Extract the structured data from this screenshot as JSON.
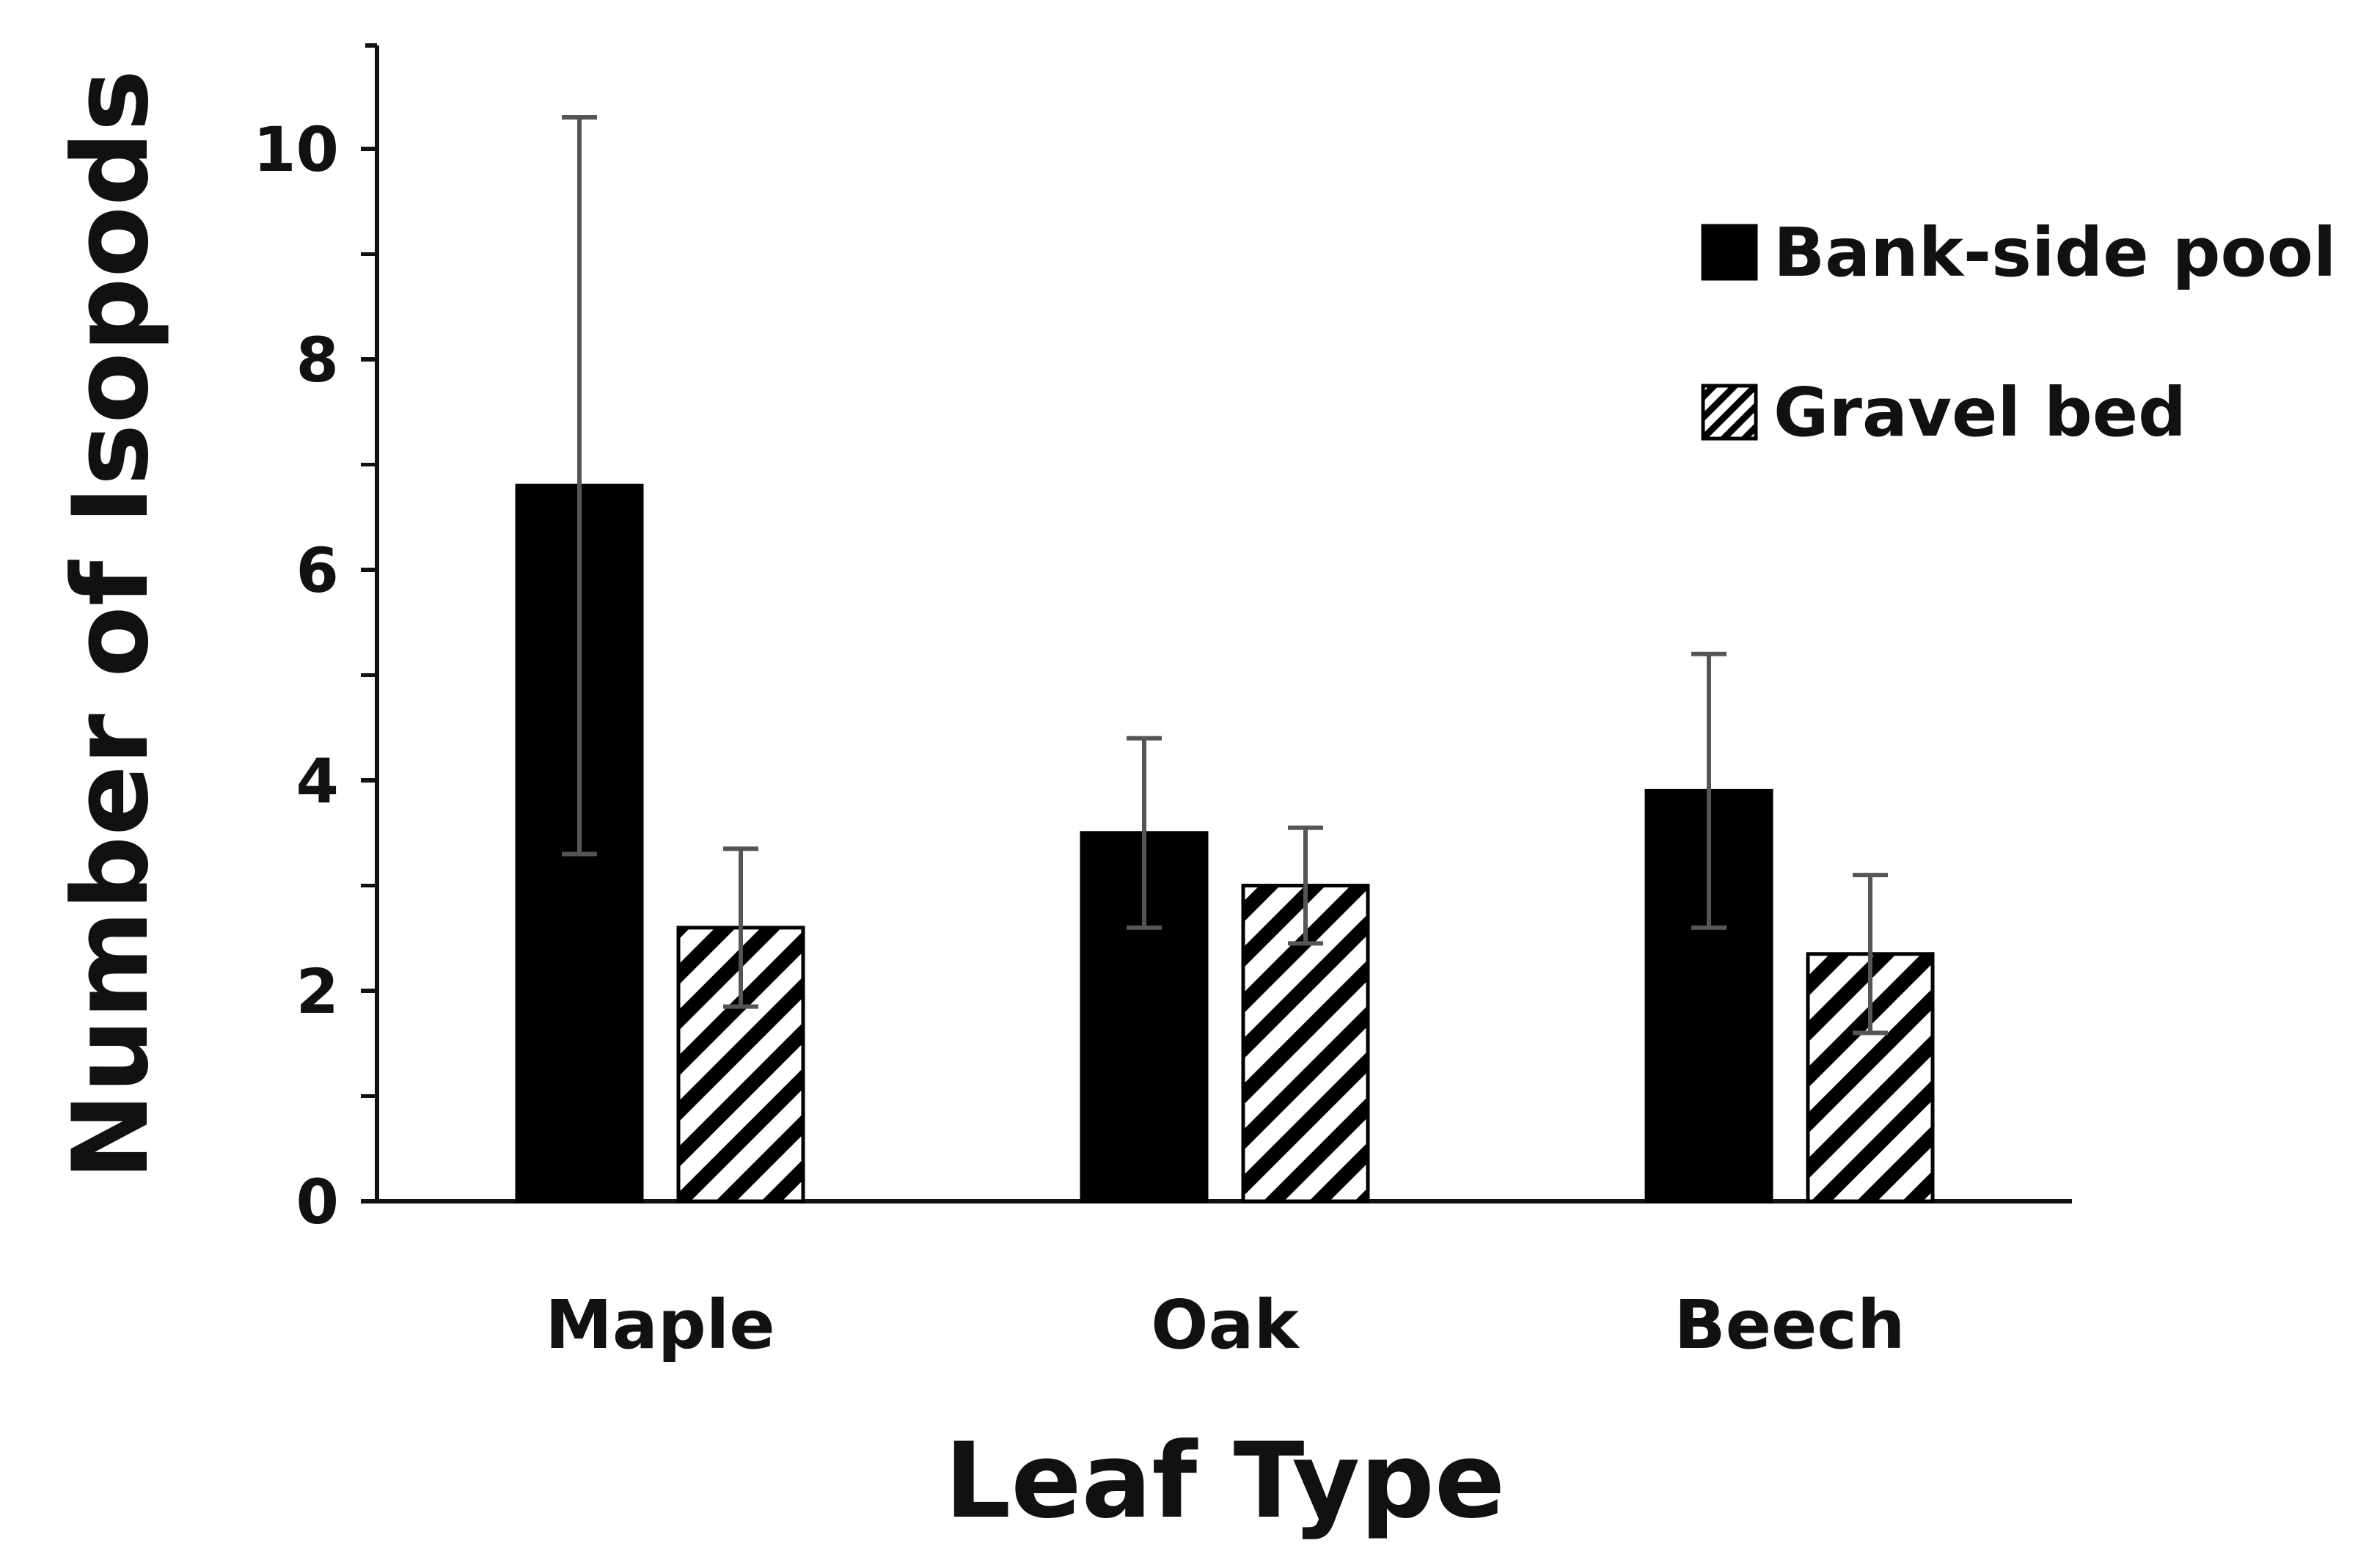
{
  "chart_data": {
    "type": "bar",
    "title": "",
    "xlabel": "Leaf Type",
    "ylabel": "Number of Isopods",
    "categories": [
      "Maple",
      "Oak",
      "Beech"
    ],
    "ylim": [
      0,
      11
    ],
    "yticks": [
      0,
      2,
      4,
      6,
      8,
      10
    ],
    "yticks_minor": [
      1,
      3,
      5,
      7,
      9
    ],
    "grid": false,
    "legend_position": "top-right",
    "series": [
      {
        "name": "Bank-side pool",
        "fill": "solid",
        "color": "#000000",
        "values": [
          6.8,
          3.5,
          3.9
        ],
        "error": [
          3.5,
          0.9,
          1.3
        ]
      },
      {
        "name": "Gravel bed",
        "fill": "hatched",
        "color": "#000000",
        "values": [
          2.6,
          3.0,
          2.35
        ],
        "error": [
          0.75,
          0.55,
          0.75
        ]
      }
    ]
  },
  "colors": {
    "axis": "#111111",
    "error_bar": "#555555",
    "background": "#ffffff"
  }
}
